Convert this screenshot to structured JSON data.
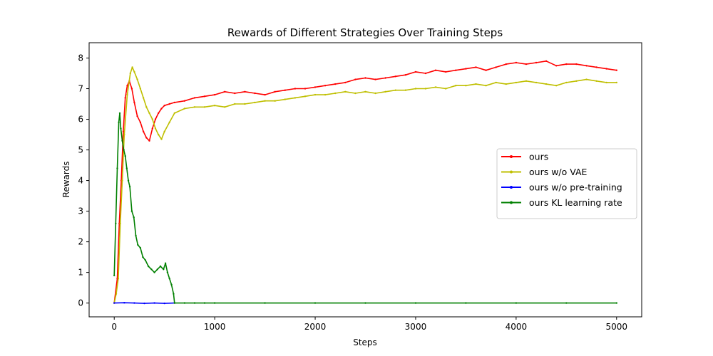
{
  "chart_data": {
    "type": "line",
    "title": "Rewards of Different Strategies Over Training Steps",
    "xlabel": "Steps",
    "ylabel": "Rewards",
    "xlim": [
      -250,
      5250
    ],
    "ylim": [
      -0.45,
      8.5
    ],
    "x_ticks": [
      0,
      1000,
      2000,
      3000,
      4000,
      5000
    ],
    "y_ticks": [
      0,
      1,
      2,
      3,
      4,
      5,
      6,
      7,
      8
    ],
    "grid": false,
    "legend_position": "center-right",
    "series": [
      {
        "name": "ours",
        "color": "#ff0000",
        "x": [
          0,
          30,
          50,
          70,
          90,
          110,
          130,
          150,
          175,
          200,
          230,
          260,
          290,
          320,
          350,
          380,
          410,
          440,
          470,
          500,
          550,
          600,
          700,
          800,
          900,
          1000,
          1100,
          1200,
          1300,
          1400,
          1500,
          1600,
          1700,
          1800,
          1900,
          2000,
          2100,
          2200,
          2300,
          2400,
          2500,
          2600,
          2700,
          2800,
          2900,
          3000,
          3100,
          3200,
          3300,
          3400,
          3500,
          3600,
          3700,
          3800,
          3900,
          4000,
          4100,
          4200,
          4300,
          4400,
          4500,
          4600,
          4700,
          4800,
          4900,
          5000
        ],
        "values": [
          0.0,
          0.8,
          2.6,
          4.0,
          5.6,
          6.7,
          7.1,
          7.25,
          7.0,
          6.55,
          6.1,
          5.9,
          5.6,
          5.4,
          5.3,
          5.7,
          6.0,
          6.2,
          6.35,
          6.45,
          6.5,
          6.55,
          6.6,
          6.7,
          6.75,
          6.8,
          6.9,
          6.85,
          6.9,
          6.85,
          6.8,
          6.9,
          6.95,
          7.0,
          7.0,
          7.05,
          7.1,
          7.15,
          7.2,
          7.3,
          7.35,
          7.3,
          7.35,
          7.4,
          7.45,
          7.55,
          7.5,
          7.6,
          7.55,
          7.6,
          7.65,
          7.7,
          7.6,
          7.7,
          7.8,
          7.85,
          7.8,
          7.85,
          7.9,
          7.75,
          7.8,
          7.8,
          7.75,
          7.7,
          7.65,
          7.6
        ]
      },
      {
        "name": "ours w/o VAE",
        "color": "#bfbf00",
        "x": [
          0,
          20,
          40,
          60,
          80,
          100,
          130,
          160,
          180,
          200,
          230,
          260,
          290,
          320,
          350,
          380,
          410,
          440,
          470,
          500,
          550,
          600,
          700,
          800,
          900,
          1000,
          1100,
          1200,
          1300,
          1400,
          1500,
          1600,
          1700,
          1800,
          1900,
          2000,
          2100,
          2200,
          2300,
          2400,
          2500,
          2600,
          2700,
          2800,
          2900,
          3000,
          3100,
          3200,
          3300,
          3400,
          3500,
          3600,
          3700,
          3800,
          3900,
          4000,
          4100,
          4200,
          4300,
          4400,
          4500,
          4600,
          4700,
          4800,
          4900,
          5000
        ],
        "values": [
          0.0,
          0.3,
          0.8,
          2.6,
          4.0,
          5.5,
          6.8,
          7.5,
          7.7,
          7.55,
          7.3,
          7.0,
          6.7,
          6.4,
          6.2,
          6.0,
          5.7,
          5.5,
          5.35,
          5.6,
          5.9,
          6.2,
          6.35,
          6.4,
          6.4,
          6.45,
          6.4,
          6.5,
          6.5,
          6.55,
          6.6,
          6.6,
          6.65,
          6.7,
          6.75,
          6.8,
          6.8,
          6.85,
          6.9,
          6.85,
          6.9,
          6.85,
          6.9,
          6.95,
          6.95,
          7.0,
          7.0,
          7.05,
          7.0,
          7.1,
          7.1,
          7.15,
          7.1,
          7.2,
          7.15,
          7.2,
          7.25,
          7.2,
          7.15,
          7.1,
          7.2,
          7.25,
          7.3,
          7.25,
          7.2,
          7.2
        ]
      },
      {
        "name": "ours w/o pre-training",
        "color": "#0000ff",
        "x": [
          0,
          100,
          200,
          300,
          400,
          500,
          600
        ],
        "values": [
          0.0,
          0.01,
          0.0,
          -0.01,
          0.0,
          -0.01,
          0.0
        ]
      },
      {
        "name": "ours KL learning rate",
        "color": "#008000",
        "x": [
          0,
          15,
          30,
          45,
          55,
          65,
          80,
          95,
          110,
          125,
          140,
          155,
          175,
          195,
          215,
          235,
          260,
          285,
          310,
          340,
          370,
          400,
          430,
          460,
          490,
          510,
          530,
          550,
          570,
          590,
          600,
          700,
          800,
          900,
          1000,
          1500,
          2000,
          2500,
          3000,
          3500,
          4000,
          4500,
          5000
        ],
        "values": [
          0.9,
          2.6,
          4.4,
          5.9,
          6.2,
          5.7,
          5.3,
          5.0,
          4.8,
          4.4,
          4.0,
          3.8,
          3.0,
          2.8,
          2.2,
          1.9,
          1.8,
          1.5,
          1.4,
          1.2,
          1.1,
          1.0,
          1.1,
          1.2,
          1.1,
          1.3,
          1.0,
          0.8,
          0.6,
          0.3,
          0.0,
          0.0,
          0.0,
          0.0,
          0.0,
          0.0,
          0.0,
          0.0,
          0.0,
          0.0,
          0.0,
          0.0,
          0.0
        ]
      }
    ]
  }
}
